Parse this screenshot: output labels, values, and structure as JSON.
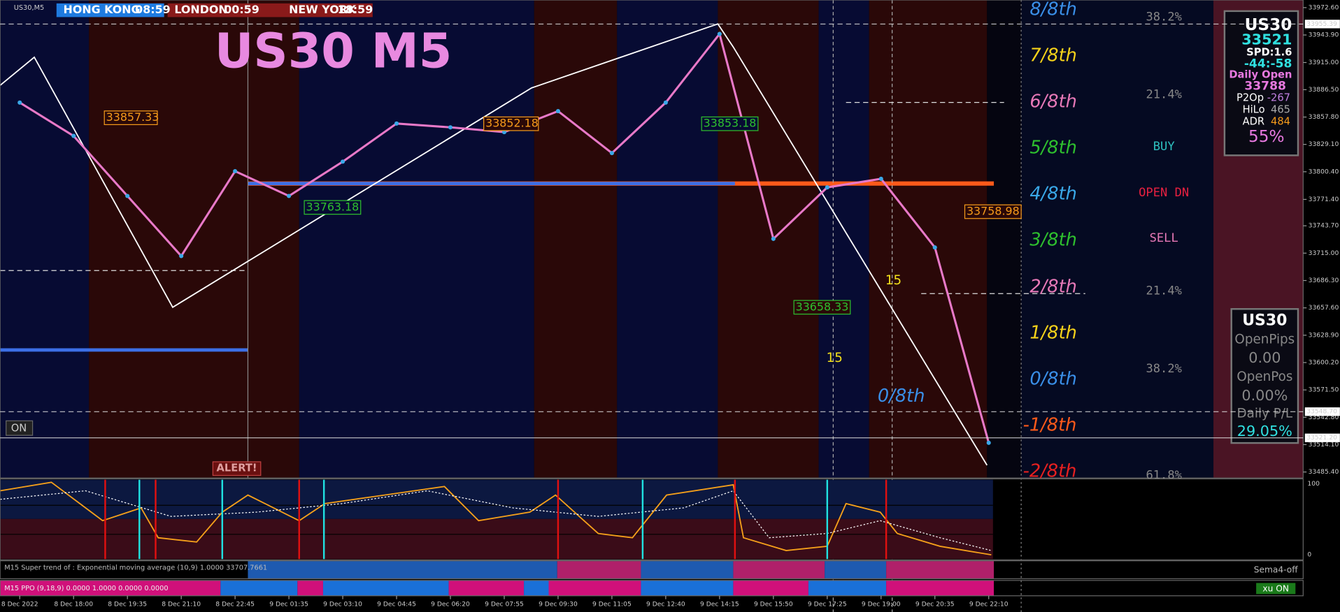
{
  "symbol": "US30,M5",
  "title": "US30 M5",
  "sessions": [
    {
      "name": "HONG KONG",
      "time": "08:59"
    },
    {
      "name": "LONDON",
      "time": "00:59"
    },
    {
      "name": "NEW YORK",
      "time": "18:59"
    }
  ],
  "chart_data": {
    "type": "line",
    "color": "#e879c8",
    "x": [
      "8 Dec 2022",
      "8 Dec 18:00",
      "8 Dec 19:35",
      "8 Dec 21:10",
      "8 Dec 22:45",
      "9 Dec 01:35",
      "9 Dec 03:10",
      "9 Dec 04:45",
      "9 Dec 06:20",
      "9 Dec 07:55",
      "9 Dec 09:30",
      "9 Dec 11:05",
      "9 Dec 12:40",
      "9 Dec 14:15",
      "9 Dec 15:50",
      "9 Dec 17:25",
      "9 Dec 19:00",
      "9 Dec 20:35",
      "9 Dec 22:10"
    ],
    "values": [
      33873,
      33838,
      33775,
      33712,
      33801,
      33775,
      33811,
      33851,
      33847,
      33842,
      33864,
      33820,
      33873,
      33945,
      33730,
      33784,
      33793,
      33721,
      33516
    ],
    "ylim": [
      33479.1,
      33980.6
    ],
    "yticks": [
      {
        "value": 33972.6,
        "label": "33972.60"
      },
      {
        "value": 33943.9,
        "label": "33943.90"
      },
      {
        "value": 33915,
        "label": "33915.00"
      },
      {
        "value": 33886.5,
        "label": "33886.50"
      },
      {
        "value": 33857.8,
        "label": "33857.80"
      },
      {
        "value": 33829.1,
        "label": "33829.10"
      },
      {
        "value": 33800.4,
        "label": "33800.40"
      },
      {
        "value": 33771.4,
        "label": "33771.40"
      },
      {
        "value": 33743.7,
        "label": "33743.70"
      },
      {
        "value": 33715,
        "label": "33715.00"
      },
      {
        "value": 33686.3,
        "label": "33686.30"
      },
      {
        "value": 33657.6,
        "label": "33657.60"
      },
      {
        "value": 33628.9,
        "label": "33628.90"
      },
      {
        "value": 33600.2,
        "label": "33600.20"
      },
      {
        "value": 33571.5,
        "label": "33571.50"
      },
      {
        "value": 33542.8,
        "label": "33542.80"
      },
      {
        "value": 33514.1,
        "label": "33514.10"
      },
      {
        "value": 33485.4,
        "label": "33485.40"
      }
    ],
    "price_markers": [
      {
        "value": 33955.39,
        "label": "33955.39"
      },
      {
        "value": 33548.7,
        "label": "33548.70"
      },
      {
        "value": 33521.2,
        "label": "33521.20"
      }
    ]
  },
  "price_labels": [
    "33857.33",
    "33852.18",
    "33853.18",
    "33763.18",
    "33658.33",
    "33758.98"
  ],
  "counts": [
    "15",
    "15"
  ],
  "fib_levels": [
    "8/8th",
    "7/8th",
    "6/8th",
    "5/8th",
    "4/8th",
    "3/8th",
    "2/8th",
    "1/8th",
    "0/8th",
    "-1/8th",
    "-2/8th"
  ],
  "fib_extra": "0/8th",
  "level_notes": [
    "38.2%",
    "21.4%",
    "BUY",
    "OPEN DN",
    "SELL",
    "21.4%",
    "38.2%",
    "61.8%"
  ],
  "buttons": {
    "on": "ON",
    "alert": "ALERT!"
  },
  "info_panel": {
    "symbol": "US30",
    "price": "33521",
    "spread": "SPD:1.6",
    "timer": "-44:-58",
    "open_label": "Daily Open",
    "open": "33788",
    "p2op_label": "P2Op",
    "p2op": "-267",
    "hilo_label": "HiLo",
    "hilo": "465",
    "adr_label": "ADR",
    "adr": "484",
    "pct": "55%"
  },
  "position_panel": {
    "symbol": "US30",
    "pips_label": "OpenPips",
    "pips": "0.00",
    "pos_label": "OpenPos",
    "pos": "0.00%",
    "pl_label": "Daily P/L",
    "pl": "29.05%"
  },
  "oscillator": {
    "max": "100",
    "min": "0"
  },
  "indicators": {
    "supertrend": "M15 Super trend of : Exponential moving average (10,9) 1.0000 33707.7661",
    "sema": "Sema4-off",
    "ppo": "M15 PPO (9,18,9) 0.0000 1.0000 0.0000 0.0000",
    "xu": "xu ON"
  }
}
